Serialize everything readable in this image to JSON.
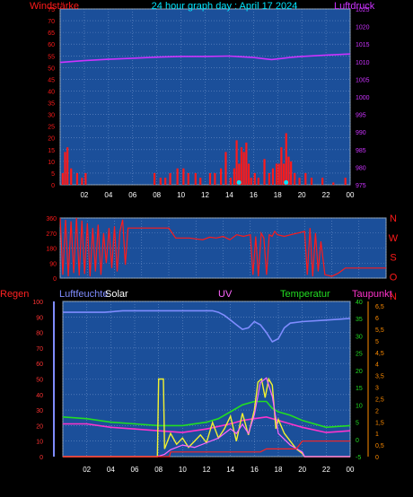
{
  "colors": {
    "background": "#000000",
    "plot_bg": "#1b4f9a",
    "grid": "#6b8fc8",
    "wind": "#ff1a1a",
    "gust": "#00e5ff",
    "pressure": "#cc33ff",
    "direction": "#ff1a1a",
    "humidity": "#7f8cff",
    "solar": "#f2f230",
    "uv": "#ff66ff",
    "temperature": "#22dd22",
    "dewpoint": "#ff33cc",
    "rain": "#ff2222",
    "title": "#00e5ff"
  },
  "chart_data": [
    {
      "type": "bar",
      "title": "24 hour graph day : April 17 2024",
      "left_axis": {
        "label": "Windstärke",
        "ticks": [
          "0",
          "5",
          "10",
          "15",
          "20",
          "25",
          "30",
          "35",
          "40",
          "45",
          "50",
          "55",
          "60",
          "65",
          "70",
          "75"
        ],
        "range": [
          0,
          75
        ]
      },
      "right_axis": {
        "label": "Luftdruck",
        "ticks": [
          "975",
          "980",
          "985",
          "990",
          "995",
          "1000",
          "1005",
          "1010",
          "1015",
          "1020",
          "1025"
        ],
        "range": [
          975,
          1025
        ]
      },
      "x_ticks": [
        "02",
        "04",
        "06",
        "08",
        "10",
        "12",
        "14",
        "16",
        "18",
        "20",
        "22",
        "00"
      ],
      "x_range": [
        0,
        24
      ],
      "series": [
        {
          "name": "Windstärke",
          "kind": "bar",
          "x": [
            0.2,
            0.4,
            0.6,
            0.9,
            1.4,
            1.8,
            2.1,
            7.8,
            8.3,
            8.7,
            9.1,
            9.7,
            10.2,
            10.6,
            11.2,
            11.6,
            12.4,
            12.8,
            13.3,
            13.7,
            14.1,
            14.4,
            14.6,
            14.8,
            15.0,
            15.2,
            15.4,
            15.6,
            15.8,
            16.1,
            16.4,
            16.9,
            17.3,
            17.6,
            17.9,
            18.1,
            18.3,
            18.5,
            18.7,
            18.9,
            19.1,
            19.4,
            19.8,
            20.3,
            20.8,
            21.7,
            22.6,
            23.6
          ],
          "y": [
            5,
            14,
            16,
            7,
            5,
            3,
            5,
            5,
            3,
            3,
            5,
            7,
            7,
            5,
            5,
            3,
            5,
            5,
            7,
            14,
            3,
            7,
            19,
            9,
            16,
            14,
            18,
            9,
            3,
            5,
            3,
            11,
            5,
            7,
            9,
            9,
            16,
            9,
            22,
            12,
            10,
            5,
            3,
            5,
            3,
            3,
            1,
            3
          ]
        },
        {
          "name": "Böen",
          "kind": "marker",
          "x": [
            14.8,
            18.7
          ],
          "y": [
            1,
            1
          ]
        },
        {
          "name": "Luftdruck",
          "kind": "line",
          "x": [
            0,
            2,
            4,
            6,
            8,
            10,
            12,
            14,
            15,
            16,
            17,
            17.5,
            18,
            19,
            20,
            22,
            24
          ],
          "y": [
            1009.8,
            1010.3,
            1010.7,
            1011.0,
            1011.3,
            1011.5,
            1011.5,
            1011.6,
            1011.4,
            1011.2,
            1010.8,
            1010.6,
            1010.8,
            1011.2,
            1011.5,
            1011.9,
            1012.2
          ]
        }
      ]
    },
    {
      "type": "scatter",
      "right_labels": [
        "N",
        "W",
        "S",
        "O",
        "N"
      ],
      "left_axis": {
        "ticks": [
          "0",
          "90",
          "180",
          "270",
          "360"
        ],
        "range": [
          0,
          360
        ]
      },
      "x_range": [
        0,
        24
      ],
      "series": [
        {
          "name": "Windrichtung",
          "kind": "line",
          "x": [
            0,
            0.2,
            0.4,
            0.6,
            0.8,
            1.0,
            1.2,
            1.4,
            1.6,
            1.8,
            2.0,
            2.2,
            2.4,
            2.6,
            2.8,
            3.0,
            3.2,
            3.4,
            3.6,
            3.8,
            4.0,
            4.2,
            4.4,
            4.6,
            4.8,
            5.0,
            5.5,
            6.0,
            6.5,
            7.0,
            7.5,
            8.0,
            8.5,
            9.0,
            9.5,
            10.0,
            10.5,
            11.0,
            11.5,
            12.0,
            12.5,
            13.0,
            13.5,
            14.0,
            14.2,
            14.4,
            14.6,
            14.8,
            15.0,
            15.2,
            15.4,
            15.6,
            15.8,
            16.0,
            16.5,
            17.0,
            17.5,
            18.0,
            18.2,
            18.4,
            18.6,
            18.8,
            19.0,
            19.2,
            19.5,
            19.8,
            20.0,
            20.5,
            21.0,
            22.0,
            23.0,
            24.0
          ],
          "y": [
            360,
            20,
            350,
            10,
            340,
            30,
            360,
            15,
            345,
            25,
            330,
            10,
            300,
            40,
            320,
            20,
            270,
            90,
            300,
            60,
            310,
            40,
            280,
            350,
            80,
            300,
            300,
            300,
            300,
            300,
            300,
            300,
            240,
            240,
            240,
            235,
            230,
            245,
            240,
            250,
            230,
            260,
            250,
            260,
            20,
            250,
            10,
            270,
            240,
            20,
            260,
            250,
            280,
            260,
            250,
            260,
            270,
            280,
            20,
            300,
            10,
            270,
            40,
            220,
            20,
            15,
            10,
            30,
            60,
            60,
            60,
            60
          ]
        }
      ]
    },
    {
      "type": "line",
      "labels": {
        "regen": "Regen",
        "humidity": "Luftfeuchte",
        "solar": "Solar",
        "uv": "UV",
        "temperature": "Temperatur",
        "dewpoint": "Taupunkt"
      },
      "rain_axis": {
        "ticks": [
          "0",
          "10",
          "20",
          "30",
          "40",
          "50",
          "60",
          "70",
          "80",
          "90",
          "100"
        ],
        "range": [
          0,
          100
        ]
      },
      "temp_axis": {
        "ticks": [
          "-5",
          "0",
          "5",
          "10",
          "15",
          "20",
          "25",
          "30",
          "35",
          "40"
        ],
        "range": [
          -5,
          40
        ]
      },
      "uv_axis": {
        "ticks": [
          "0",
          "0,5",
          "1",
          "1,5",
          "2",
          "2,5",
          "3",
          "3,5",
          "4",
          "4,5",
          "5",
          "5,5",
          "6",
          "6,5"
        ],
        "range": [
          0,
          6.7
        ]
      },
      "x_ticks": [
        "02",
        "04",
        "06",
        "08",
        "10",
        "12",
        "14",
        "16",
        "18",
        "20",
        "22",
        "00"
      ],
      "x_range": [
        0,
        24
      ],
      "series": [
        {
          "name": "Luftfeuchte",
          "kind": "line",
          "x": [
            0,
            2,
            3.5,
            5,
            7,
            8,
            10,
            12,
            12.5,
            13,
            13.5,
            14,
            14.5,
            15,
            15.5,
            16,
            16.5,
            17,
            17.5,
            18,
            18.5,
            19,
            20,
            22,
            24
          ],
          "y": [
            93,
            93,
            93,
            94,
            94,
            94,
            94,
            94,
            94,
            93,
            91,
            88,
            85,
            82,
            83,
            87,
            85,
            80,
            74,
            76,
            83,
            86,
            87,
            88,
            89
          ]
        },
        {
          "name": "Temperatur",
          "kind": "line",
          "x": [
            0,
            2,
            4,
            6,
            8,
            10,
            12,
            13,
            14,
            15,
            16,
            16.5,
            17,
            17.5,
            18,
            19,
            20,
            22,
            24
          ],
          "y": [
            6.5,
            6,
            5,
            4.5,
            4,
            4,
            5,
            6,
            8,
            10,
            11,
            11,
            11,
            9,
            8,
            7,
            5.5,
            3.5,
            4
          ]
        },
        {
          "name": "Taupunkt",
          "kind": "line",
          "x": [
            0,
            2,
            4,
            6,
            8,
            10,
            12,
            14,
            15,
            16,
            17,
            18,
            19,
            20,
            22,
            24
          ],
          "y": [
            4.5,
            4.5,
            3.5,
            3,
            2.5,
            2,
            3,
            4.5,
            5.5,
            6,
            6.5,
            5.5,
            4.5,
            3.5,
            2,
            2.5
          ]
        },
        {
          "name": "Solar",
          "kind": "line",
          "x": [
            0,
            7.9,
            8.0,
            8.4,
            8.5,
            9.0,
            9.5,
            10.0,
            10.5,
            11.0,
            11.5,
            12.0,
            12.5,
            13.0,
            13.5,
            14.0,
            14.5,
            15.0,
            15.5,
            16.0,
            16.3,
            16.6,
            16.9,
            17.2,
            17.5,
            17.8,
            18.0,
            18.5,
            19.0,
            19.5,
            20.0,
            20.2,
            24
          ],
          "y": [
            0,
            0,
            50,
            50,
            5,
            15,
            8,
            12,
            6,
            10,
            14,
            9,
            22,
            12,
            18,
            26,
            10,
            28,
            14,
            30,
            48,
            50,
            38,
            50,
            46,
            18,
            24,
            15,
            10,
            5,
            2,
            0,
            0
          ]
        },
        {
          "name": "UV",
          "kind": "line",
          "x": [
            0,
            7.9,
            8.5,
            9,
            10,
            11,
            12,
            13,
            14,
            14.5,
            15,
            15.5,
            16,
            16.5,
            17,
            17.5,
            18,
            19,
            20,
            20.2,
            24
          ],
          "y": [
            0,
            0,
            0.1,
            0.3,
            0.5,
            0.4,
            0.6,
            0.8,
            1.2,
            1.0,
            1.4,
            1.0,
            1.8,
            3.2,
            3.4,
            2.6,
            1.0,
            0.5,
            0.2,
            0,
            0
          ]
        },
        {
          "name": "Regen",
          "kind": "line",
          "x": [
            0,
            8.9,
            9,
            16.5,
            17,
            19.5,
            20,
            24
          ],
          "y": [
            0,
            0,
            3,
            3,
            5,
            5,
            10,
            10
          ]
        }
      ]
    }
  ]
}
